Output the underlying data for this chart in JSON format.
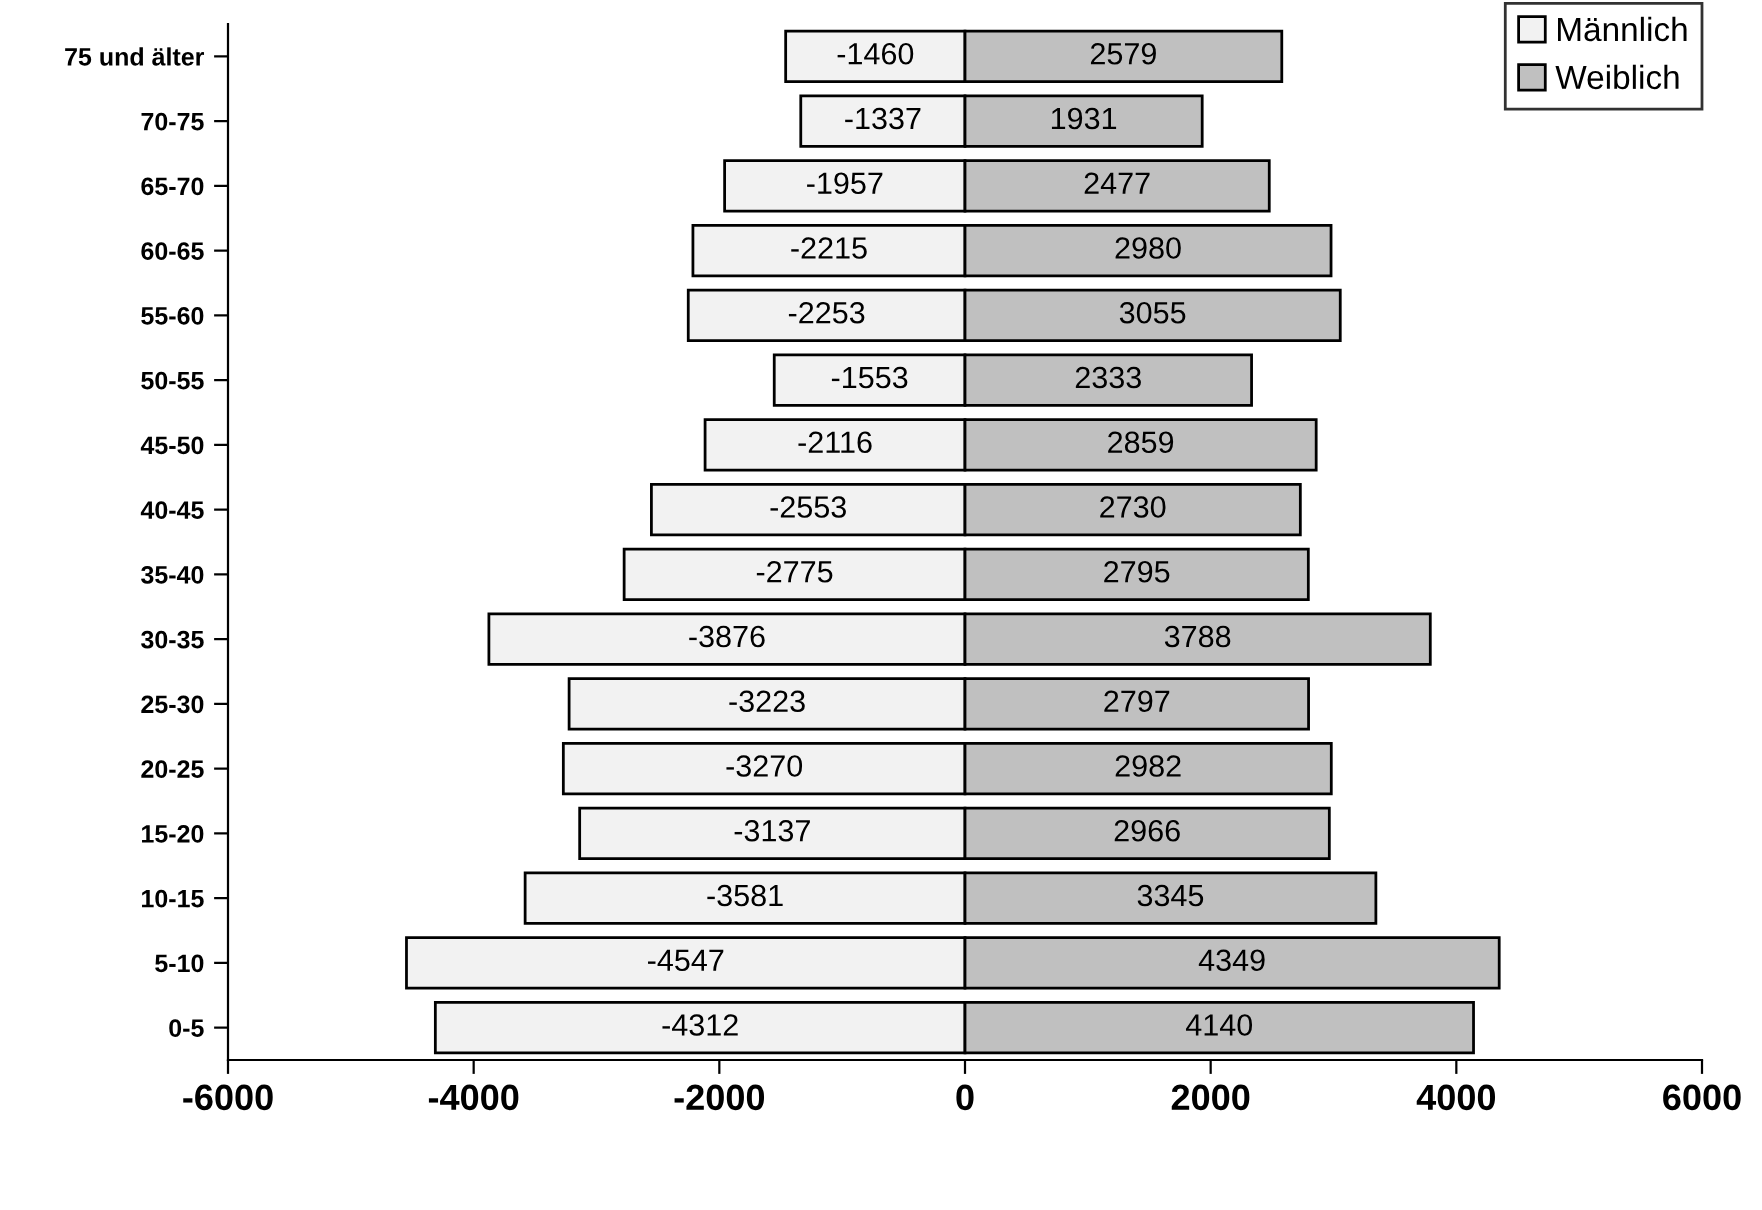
{
  "chart_data": {
    "type": "bar",
    "orientation": "horizontal",
    "categories": [
      "75 und älter",
      "70-75",
      "65-70",
      "60-65",
      "55-60",
      "50-55",
      "45-50",
      "40-45",
      "35-40",
      "30-35",
      "25-30",
      "20-25",
      "15-20",
      "10-15",
      "5-10",
      "0-5"
    ],
    "series": [
      {
        "name": "Männlich",
        "color": "#f2f2f2",
        "values": [
          -1460,
          -1337,
          -1957,
          -2215,
          -2253,
          -1553,
          -2116,
          -2553,
          -2775,
          -3876,
          -3223,
          -3270,
          -3137,
          -3581,
          -4547,
          -4312
        ]
      },
      {
        "name": "Weiblich",
        "color": "#c0c0c0",
        "values": [
          2579,
          1931,
          2477,
          2980,
          3055,
          2333,
          2859,
          2730,
          2795,
          3788,
          2797,
          2982,
          2966,
          3345,
          4349,
          4140
        ]
      }
    ],
    "xlim": [
      -6000,
      6000
    ],
    "xticks": [
      -6000,
      -4000,
      -2000,
      0,
      2000,
      4000,
      6000
    ],
    "data_labels": true,
    "stacked": true,
    "legend": "top right",
    "grid": false
  }
}
